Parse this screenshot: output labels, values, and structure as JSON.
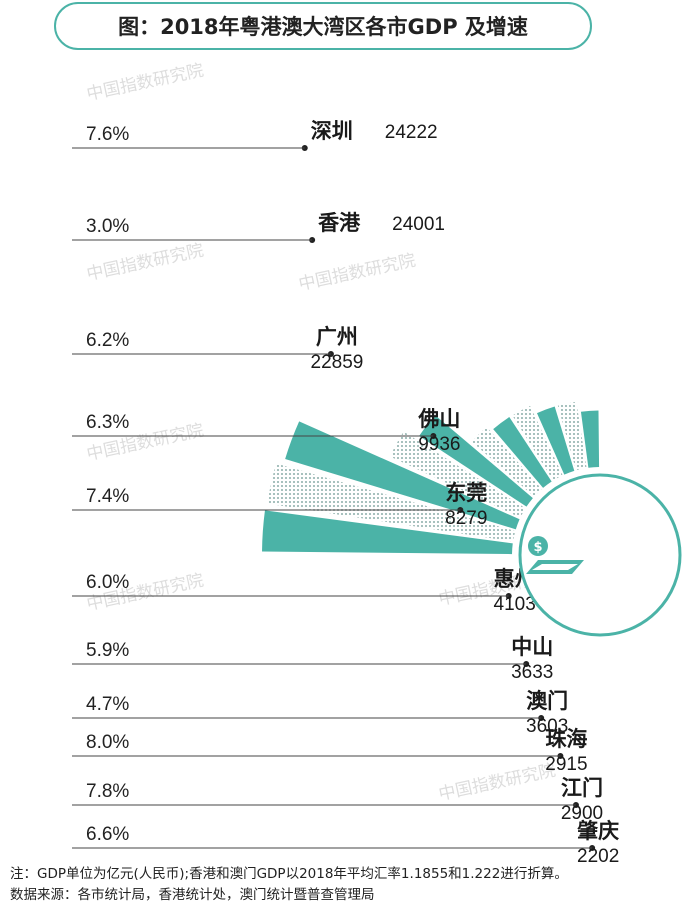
{
  "title": "图：2018年粤港澳大湾区各市GDP 及增速",
  "watermark": "中国指数研究院",
  "colors": {
    "solid": "#4bb3a7",
    "dotted": "#9fb9b6",
    "line": "#444444",
    "title_border": "#4bb3a7"
  },
  "icon": "money-card-icon",
  "chart_data": {
    "type": "bar",
    "subtype": "radial-polar-bar",
    "unit_note": "GDP单位为亿元(人民币)",
    "categories": [
      "深圳",
      "香港",
      "广州",
      "佛山",
      "东莞",
      "惠州",
      "中山",
      "澳门",
      "珠海",
      "江门",
      "肇庆"
    ],
    "gdp": [
      24222,
      24001,
      22859,
      9936,
      8279,
      4103,
      3633,
      3603,
      2915,
      2900,
      2202
    ],
    "gdp_labels": [
      "24222",
      "24001",
      "22859",
      "9936",
      "8279",
      "4103",
      "3633",
      "3603",
      "2915",
      "2900",
      "2202"
    ],
    "growth": [
      "7.6%",
      "3.0%",
      "6.2%",
      "6.3%",
      "7.4%",
      "6.0%",
      "5.9%",
      "4.7%",
      "8.0%",
      "7.8%",
      "6.6%"
    ],
    "fill_style": [
      "solid",
      "dotted",
      "solid",
      "dotted",
      "solid",
      "dotted",
      "solid",
      "dotted",
      "solid",
      "dotted",
      "solid"
    ]
  },
  "footnotes": {
    "note": "注：GDP单位为亿元(人民币);香港和澳门GDP以2018年平均汇率1.1855和1.222进行折算。",
    "source": "数据来源：各市统计局，香港统计处，澳门统计暨普查管理局"
  }
}
